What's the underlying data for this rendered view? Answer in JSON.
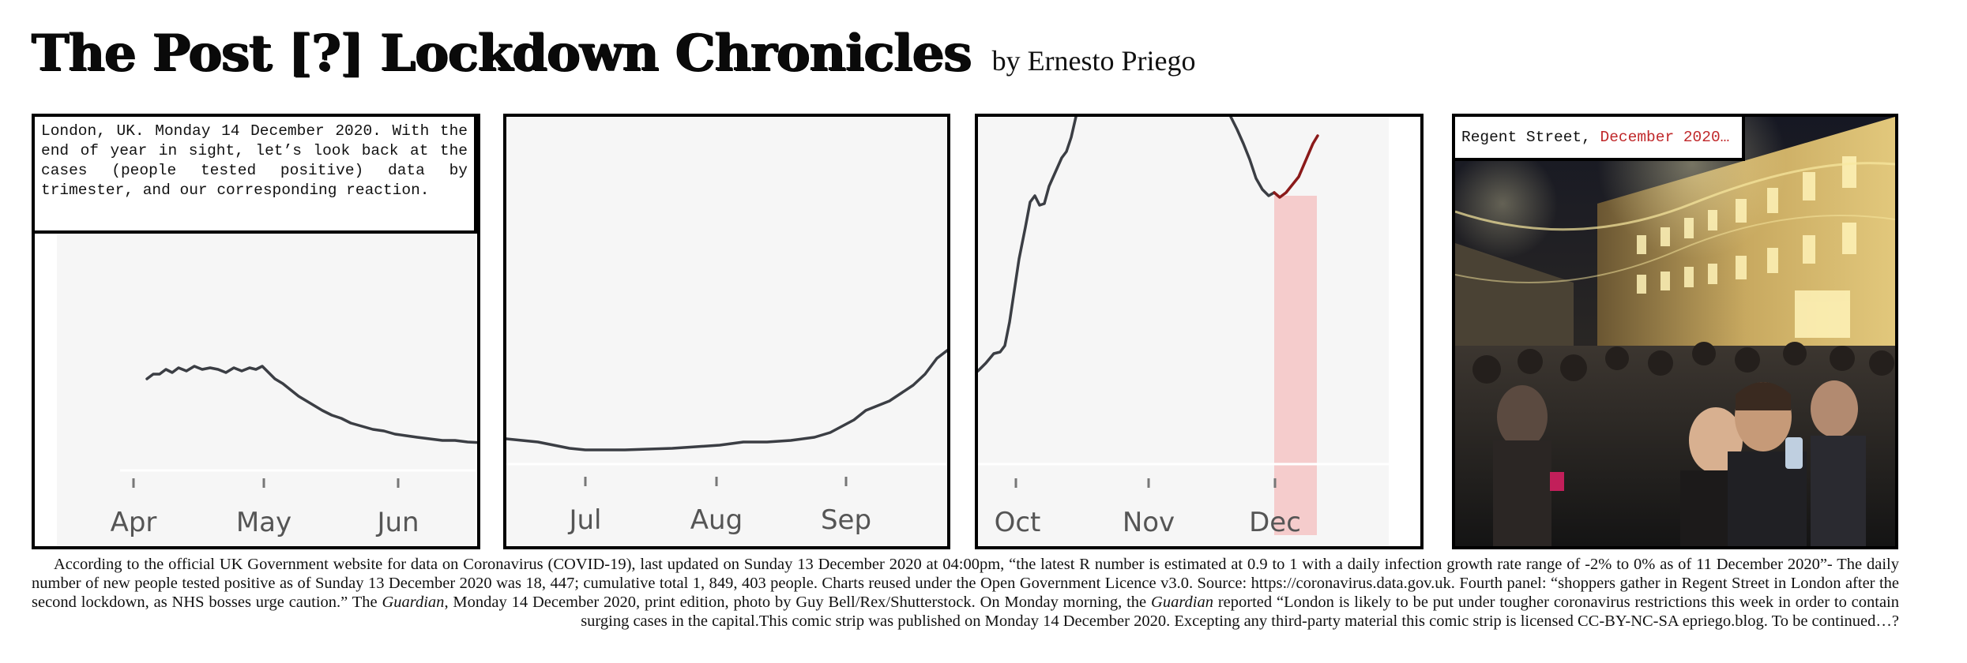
{
  "header": {
    "title": "The Post [?] Lockdown Chronicles",
    "byline": "by Ernesto Priego"
  },
  "panel1": {
    "caption": "London, UK. Monday 14 December 2020. With the end of year in sight, let’s look back at the cases (people tested positive) data by trimester, and our corresponding reaction.",
    "months": [
      "Apr",
      "May",
      "Jun"
    ]
  },
  "panel2": {
    "months": [
      "Jul",
      "Aug",
      "Sep"
    ]
  },
  "panel3": {
    "months": [
      "Oct",
      "Nov",
      "Dec"
    ]
  },
  "panel4": {
    "caption_place": "Regent Street, ",
    "caption_date": "December 2020…",
    "colors": {
      "sky": "#1c1e2a",
      "lights": "#f6e9a0",
      "building": "#b89a55"
    }
  },
  "footer": {
    "text_1": "According to the official UK Government website for data on Coronavirus (COVID-19), last updated on Sunday 13 December 2020 at 04:00pm, “the latest R number is estimated at 0.9 to 1 with a daily infection growth rate range of -2% to 0% as of 11 December 2020”- The daily number of new people tested positive as of Sunday 13 December 2020 was 18, 447; cumulative total 1, 849, 403 people. Charts reused under the Open Government Licence v3.0. Source: https://coronavirus.data.gov.uk. Fourth panel: “shoppers gather in Regent Street in London after the second lockdown, as NHS bosses urge caution.” The ",
    "guardian_1": "Guardian",
    "text_2": ", Monday 14 December 2020, print edition, photo by Guy Bell/Rex/Shutterstock. On Monday morning, the ",
    "guardian_2": "Guardian",
    "text_3": " reported “London is likely to be put under tougher coronavirus restrictions this week in order to contain surging cases in the capital.This comic strip was published on Monday 14 December 2020.  Excepting any third-party material this comic strip is licensed CC-BY-NC-SA epriego.blog. To be continued…?"
  }
}
